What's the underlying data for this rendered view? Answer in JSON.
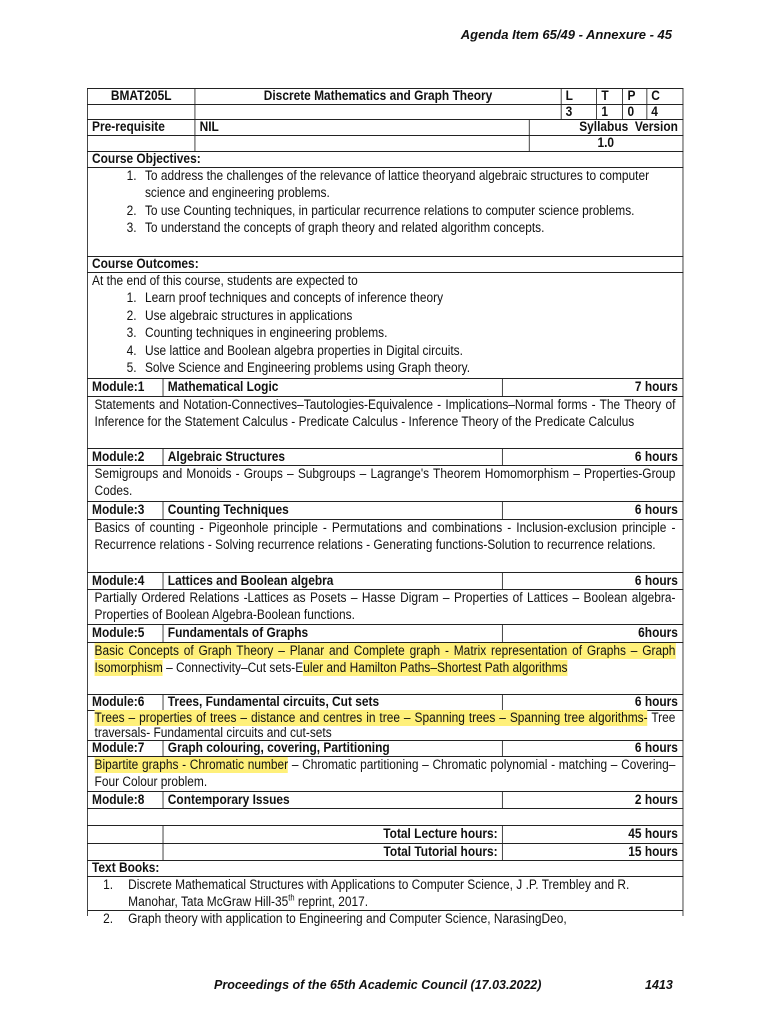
{
  "header": {
    "agenda": "Agenda Item 65/49 - Annexure - 45"
  },
  "course": {
    "code": "BMAT205L",
    "title": "Discrete Mathematics and Graph Theory",
    "ltpc_labels": [
      "L",
      "T",
      "P",
      "C"
    ],
    "ltpc_values": [
      "3",
      "1",
      "0",
      "4"
    ],
    "prereq_label": "Pre-requisite",
    "prereq_value": "NIL",
    "version_label": "Syllabus  Version",
    "version_value": "1.0"
  },
  "objectives": {
    "heading": "Course Objectives:",
    "items": [
      "To address the challenges of the relevance of lattice theoryand algebraic structures to computer science and engineering problems.",
      "To use Counting techniques, in particular recurrence relations to computer science problems.",
      "To understand the concepts of graph theory and related algorithm concepts."
    ]
  },
  "outcomes": {
    "heading": "Course Outcomes:",
    "intro": "At the end of this course, students are expected to",
    "items": [
      "Learn proof techniques and concepts of inference theory",
      "Use algebraic structures in applications",
      "Counting techniques in engineering problems.",
      "Use lattice and Boolean algebra properties in Digital circuits.",
      "Solve Science and Engineering problems using Graph theory."
    ]
  },
  "modules": [
    {
      "label": "Module:1",
      "title": "Mathematical Logic",
      "hours": "7 hours",
      "body": "Statements and Notation-Connectives–Tautologies-Equivalence - Implications–Normal forms - The Theory of Inference for the Statement Calculus - Predicate Calculus - Inference Theory of the Predicate Calculus"
    },
    {
      "label": "Module:2",
      "title": "Algebraic Structures",
      "hours": "6 hours",
      "body": "Semigroups and Monoids - Groups – Subgroups – Lagrange's Theorem Homomorphism – Properties-Group Codes."
    },
    {
      "label": "Module:3",
      "title": "Counting Techniques",
      "hours": "6 hours",
      "body": "Basics of counting - Pigeonhole principle - Permutations and combinations - Inclusion-exclusion principle - Recurrence relations - Solving recurrence relations - Generating functions-Solution to recurrence relations."
    },
    {
      "label": "Module:4",
      "title": "Lattices and Boolean algebra",
      "hours": "6 hours",
      "body": "Partially Ordered Relations -Lattices as Posets – Hasse Digram – Properties of Lattices – Boolean algebra-Properties of Boolean Algebra-Boolean functions."
    },
    {
      "label": "Module:5",
      "title": "Fundamentals of Graphs",
      "hours": "6hours",
      "body_parts": [
        "Basic Concepts of Graph Theory – Planar and Complete graph - Matrix representation of Graphs – Graph Isomorphism",
        " – Connectivity–Cut sets-E",
        "uler and Hamilton Paths–Shortest Path algorithms"
      ]
    },
    {
      "label": "Module:6",
      "title": "Trees, Fundamental circuits, Cut sets",
      "hours": "6 hours",
      "body_parts": [
        "Trees – properties of trees – distance and centres in tree – Spanning trees – Spanning tree algorithms-",
        " Tree traversals- Fundamental circuits and cut-sets"
      ]
    },
    {
      "label": "Module:7",
      "title": "Graph colouring, covering, Partitioning",
      "hours": "6 hours",
      "body_parts": [
        "Bipartite graphs - Chromatic number",
        " – Chromatic partitioning – Chromatic polynomial - matching – Covering– Four Colour problem."
      ]
    },
    {
      "label": "Module:8",
      "title": "Contemporary Issues",
      "hours": "2 hours"
    }
  ],
  "totals": {
    "lecture_label": "Total Lecture hours:",
    "lecture_value": "45 hours",
    "tutorial_label": "Total Tutorial hours:",
    "tutorial_value": "15 hours"
  },
  "textbooks": {
    "heading": "Text Books:",
    "item1_a": "Discrete Mathematical Structures with Applications to Computer Science, J .P. Trembley and R. Manohar, Tata McGraw Hill-35",
    "item1_sup": "th",
    "item1_b": " reprint, 2017.",
    "item2": "Graph theory with application to Engineering and Computer Science, NarasingDeo,"
  },
  "footer": {
    "proceedings": "Proceedings of the 65th Academic Council (17.03.2022)",
    "page": "1413"
  },
  "colors": {
    "highlight": "#fff07a",
    "border": "#222222"
  }
}
